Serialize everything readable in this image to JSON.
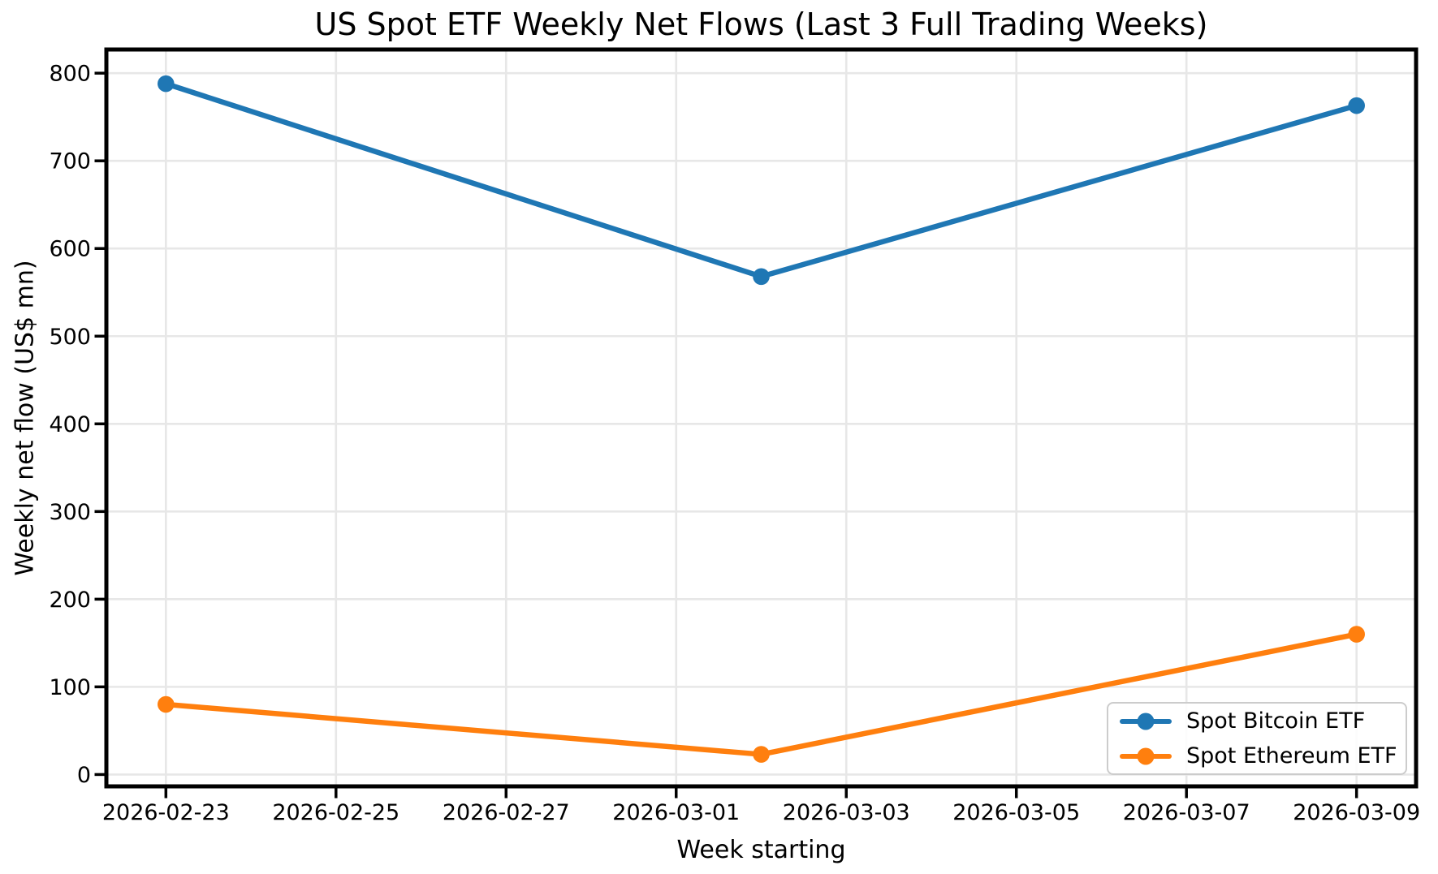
{
  "chart_data": {
    "type": "line",
    "title": "US Spot ETF Weekly Net Flows (Last 3 Full Trading Weeks)",
    "xlabel": "Week starting",
    "ylabel": "Weekly net flow (US$ mn)",
    "grid": true,
    "legend_position": "lower right",
    "x_tick_labels": [
      "2026-02-23",
      "2026-02-25",
      "2026-02-27",
      "2026-03-01",
      "2026-03-03",
      "2026-03-05",
      "2026-03-07",
      "2026-03-09"
    ],
    "x_tick_days": [
      0,
      2,
      4,
      6,
      8,
      10,
      12,
      14
    ],
    "xlim_days": [
      -0.7,
      14.7
    ],
    "y_ticks": [
      0,
      100,
      200,
      300,
      400,
      500,
      600,
      700,
      800
    ],
    "ylim": [
      -13.5,
      827
    ],
    "x_dates": [
      "2026-02-23",
      "2026-03-02",
      "2026-03-09"
    ],
    "x_days": [
      0,
      7,
      14
    ],
    "series": [
      {
        "name": "Spot Bitcoin ETF",
        "color": "#1f77b4",
        "values": [
          788,
          568,
          763
        ]
      },
      {
        "name": "Spot Ethereum ETF",
        "color": "#ff7f0e",
        "values": [
          80,
          23,
          160
        ]
      }
    ],
    "colors": {
      "grid": "#e7e7e7",
      "spine": "#000000",
      "text": "#000000"
    }
  }
}
